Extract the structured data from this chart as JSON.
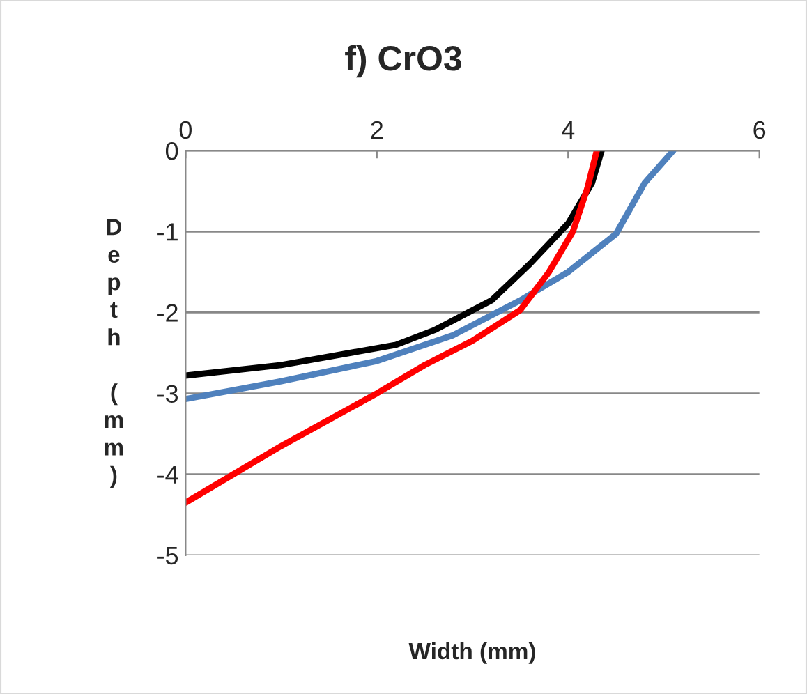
{
  "chart_data": {
    "type": "line",
    "title": "f) CrO3",
    "xlabel": "Width (mm)",
    "ylabel": "Depth (mm)",
    "xlim": [
      0,
      6
    ],
    "xticks": [
      0,
      2,
      4,
      6
    ],
    "ylim": [
      -5,
      0
    ],
    "yticks": [
      -5,
      -4,
      -3,
      -2,
      -1,
      0
    ],
    "grid": "y",
    "marker": "none",
    "line_style": "solid",
    "series": [
      {
        "color": "#000000",
        "x": [
          0,
          1,
          2.2,
          2.6,
          3.2,
          3.6,
          4.0,
          4.25,
          4.35
        ],
        "values": [
          -2.78,
          -2.65,
          -2.4,
          -2.22,
          -1.85,
          -1.4,
          -0.9,
          -0.4,
          0
        ]
      },
      {
        "color": "#4f81bd",
        "x": [
          0,
          1,
          2,
          2.8,
          3.5,
          4,
          4.5,
          4.8,
          5.1
        ],
        "values": [
          -3.07,
          -2.85,
          -2.6,
          -2.28,
          -1.85,
          -1.5,
          -1.03,
          -0.4,
          0
        ]
      },
      {
        "color": "#ff0000",
        "x": [
          0,
          0.5,
          1,
          2,
          2.5,
          3,
          3.5,
          3.8,
          4.05,
          4.2,
          4.3
        ],
        "values": [
          -4.35,
          -4.0,
          -3.65,
          -3.0,
          -2.65,
          -2.35,
          -1.97,
          -1.5,
          -1.0,
          -0.47,
          0
        ]
      }
    ]
  }
}
